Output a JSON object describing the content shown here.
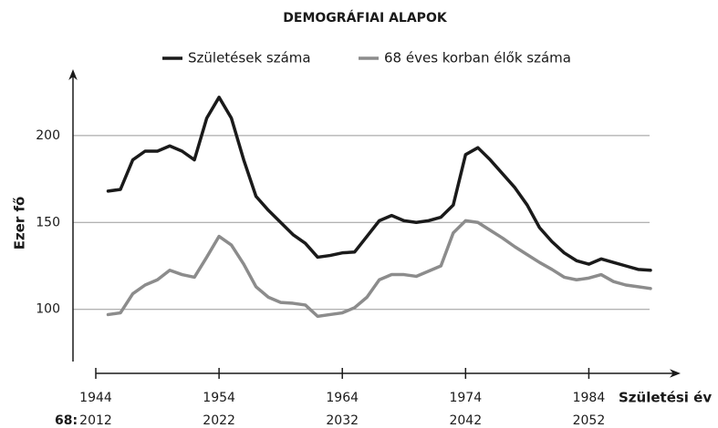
{
  "chart_data": {
    "type": "line",
    "title": "DEMOGRÁFIAI ALAPOK",
    "y_label": "Ezer fő",
    "x_label": "Születési év",
    "x": [
      1945,
      1946,
      1947,
      1948,
      1949,
      1950,
      1951,
      1952,
      1953,
      1954,
      1955,
      1956,
      1957,
      1958,
      1959,
      1960,
      1961,
      1962,
      1963,
      1964,
      1965,
      1966,
      1967,
      1968,
      1969,
      1970,
      1971,
      1972,
      1973,
      1974,
      1975,
      1976,
      1977,
      1978,
      1979,
      1980,
      1981,
      1982,
      1983,
      1984,
      1985,
      1986,
      1987,
      1988,
      1989
    ],
    "series": [
      {
        "name": "Születések száma",
        "color": "#1a1a1a",
        "values": [
          168,
          169,
          186,
          191,
          191,
          194,
          191,
          186,
          210,
          222,
          210,
          186,
          165,
          157,
          150,
          143,
          138,
          130,
          131,
          132.5,
          133,
          142,
          151,
          154,
          151,
          150,
          151,
          153,
          160,
          189,
          193,
          186,
          178,
          170,
          160,
          147,
          139,
          132.5,
          128,
          126,
          129,
          127,
          125,
          123,
          122.5
        ]
      },
      {
        "name": "68 éves korban élők száma",
        "color": "#8c8c8c",
        "values": [
          97,
          98,
          109,
          114,
          117,
          122.5,
          120,
          118.5,
          130,
          142,
          137,
          126,
          113,
          107,
          104,
          103.5,
          102.5,
          96,
          97,
          98,
          101,
          107,
          117,
          120,
          120,
          119,
          122,
          125,
          144,
          151,
          150,
          145.5,
          141,
          136,
          131.5,
          127,
          123,
          118.5,
          117,
          118,
          120,
          116,
          114,
          113,
          112
        ]
      }
    ],
    "xlim": [
      1944,
      1991
    ],
    "ylim": [
      70,
      235
    ],
    "xticks": [
      1944,
      1954,
      1964,
      1974,
      1984
    ],
    "xticks2_prefix": "68:",
    "xticks2": [
      {
        "value": 1944,
        "label": "2012"
      },
      {
        "value": 1954,
        "label": "2022"
      },
      {
        "value": 1964,
        "label": "2032"
      },
      {
        "value": 1974,
        "label": "2042"
      },
      {
        "value": 1984,
        "label": "2052"
      }
    ],
    "yticks": [
      100,
      150,
      200
    ],
    "grid": true,
    "legend": "top"
  }
}
